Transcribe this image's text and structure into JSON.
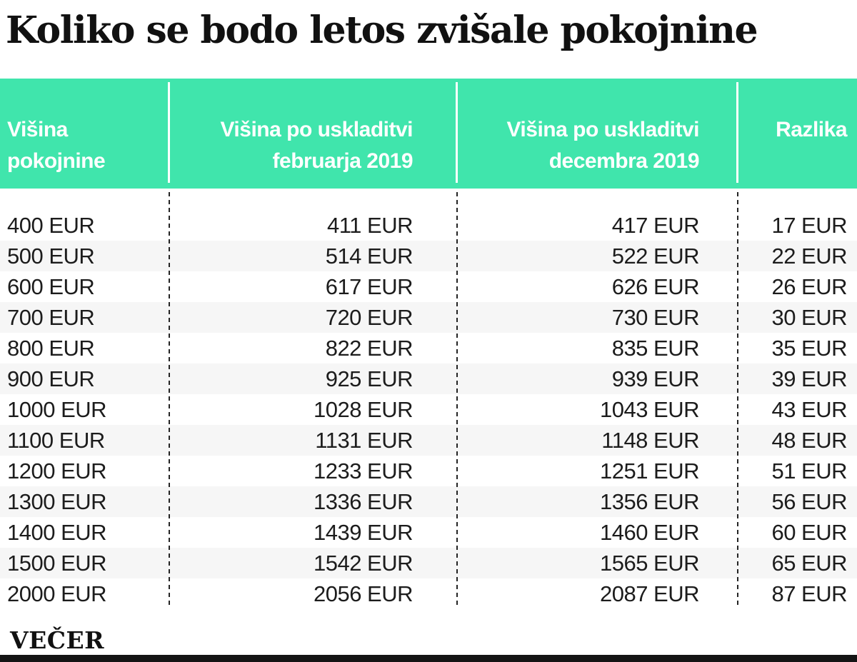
{
  "title": "Koliko se bodo letos zvišale pokojnine",
  "colors": {
    "header_bg": "#40E5AC",
    "header_text": "#ffffff",
    "zebra_row": "#f6f6f6",
    "body_text": "#1c1c1c",
    "footer_bar": "#141414"
  },
  "table": {
    "columns": [
      {
        "line1": "Višina",
        "line2": "pokojnine",
        "align": "left"
      },
      {
        "line1": "Višina po uskladitvi",
        "line2": "februarja 2019",
        "align": "right"
      },
      {
        "line1": "Višina po uskladitvi",
        "line2": "decembra 2019",
        "align": "right"
      },
      {
        "line1": "Razlika",
        "line2": "",
        "align": "right"
      }
    ],
    "rows": [
      {
        "cells": [
          "400 EUR",
          "411 EUR",
          "417 EUR",
          "17 EUR"
        ]
      },
      {
        "cells": [
          "500 EUR",
          "514 EUR",
          "522 EUR",
          "22 EUR"
        ]
      },
      {
        "cells": [
          "600 EUR",
          "617 EUR",
          "626 EUR",
          "26 EUR"
        ]
      },
      {
        "cells": [
          "700 EUR",
          "720 EUR",
          "730 EUR",
          "30 EUR"
        ]
      },
      {
        "cells": [
          "800 EUR",
          "822 EUR",
          "835 EUR",
          "35 EUR"
        ]
      },
      {
        "cells": [
          "900 EUR",
          "925 EUR",
          "939 EUR",
          "39 EUR"
        ]
      },
      {
        "cells": [
          "1000 EUR",
          "1028 EUR",
          "1043 EUR",
          "43 EUR"
        ]
      },
      {
        "cells": [
          "1100 EUR",
          "1131 EUR",
          "1148 EUR",
          "48 EUR"
        ]
      },
      {
        "cells": [
          "1200 EUR",
          "1233 EUR",
          "1251 EUR",
          "51 EUR"
        ]
      },
      {
        "cells": [
          "1300 EUR",
          "1336 EUR",
          "1356 EUR",
          "56 EUR"
        ]
      },
      {
        "cells": [
          "1400 EUR",
          "1439 EUR",
          "1460 EUR",
          "60 EUR"
        ]
      },
      {
        "cells": [
          "1500 EUR",
          "1542 EUR",
          "1565 EUR",
          "65 EUR"
        ]
      },
      {
        "cells": [
          "2000 EUR",
          "2056 EUR",
          "2087 EUR",
          "87 EUR"
        ]
      }
    ]
  },
  "footer": {
    "logo": "VEČER"
  },
  "chart_data": {
    "type": "table",
    "title": "Koliko se bodo letos zvišale pokojnine",
    "columns": [
      "Višina pokojnine",
      "Višina po uskladitvi februarja 2019",
      "Višina po uskladitvi decembra 2019",
      "Razlika"
    ],
    "unit": "EUR",
    "rows": [
      [
        400,
        411,
        417,
        17
      ],
      [
        500,
        514,
        522,
        22
      ],
      [
        600,
        617,
        626,
        26
      ],
      [
        700,
        720,
        730,
        30
      ],
      [
        800,
        822,
        835,
        35
      ],
      [
        900,
        925,
        939,
        39
      ],
      [
        1000,
        1028,
        1043,
        43
      ],
      [
        1100,
        1131,
        1148,
        48
      ],
      [
        1200,
        1233,
        1251,
        51
      ],
      [
        1300,
        1336,
        1356,
        56
      ],
      [
        1400,
        1439,
        1460,
        60
      ],
      [
        1500,
        1542,
        1565,
        65
      ],
      [
        2000,
        2056,
        2087,
        87
      ]
    ],
    "source_label": "VEČER",
    "layout": {
      "header_row": true,
      "zebra_striping": true,
      "column_alignment": [
        "left",
        "right",
        "right",
        "right"
      ]
    }
  }
}
